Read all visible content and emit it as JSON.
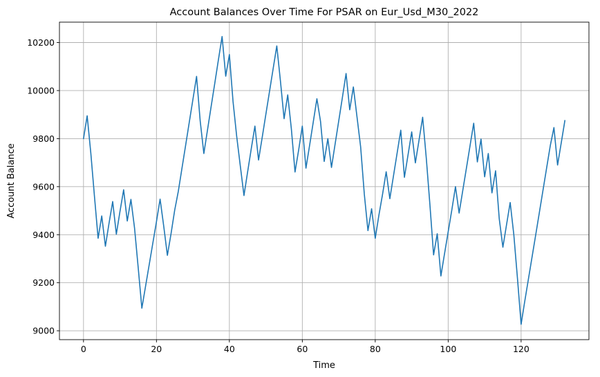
{
  "chart_data": {
    "type": "line",
    "title": "Account Balances Over Time For PSAR on Eur_Usd_M30_2022",
    "xlabel": "Time",
    "ylabel": "Account Balance",
    "xlim": [
      -6.6,
      138.6
    ],
    "ylim": [
      8963,
      10285
    ],
    "xticks": [
      0,
      20,
      40,
      60,
      80,
      100,
      120
    ],
    "yticks": [
      9000,
      9200,
      9400,
      9600,
      9800,
      10000,
      10200
    ],
    "grid": true,
    "line_color": "#1f77b4",
    "series": [
      {
        "x": [
          0,
          1,
          2,
          3,
          4,
          5,
          6,
          7,
          8,
          9,
          10,
          11,
          12,
          13,
          14,
          15,
          16,
          17,
          18,
          19,
          20,
          21,
          22,
          23,
          24,
          25,
          26,
          27,
          28,
          29,
          30,
          31,
          32,
          33,
          34,
          35,
          36,
          37,
          38,
          39,
          40,
          41,
          42,
          43,
          44,
          45,
          46,
          47,
          48,
          49,
          50,
          51,
          52,
          53,
          54,
          55,
          56,
          57,
          58,
          59,
          60,
          61,
          62,
          63,
          64,
          65,
          66,
          67,
          68,
          69,
          70,
          71,
          72,
          73,
          74,
          75,
          76,
          77,
          78,
          79,
          80,
          81,
          82,
          83,
          84,
          85,
          86,
          87,
          88,
          89,
          90,
          91,
          92,
          93,
          94,
          95,
          96,
          97,
          98,
          99,
          100,
          101,
          102,
          103,
          104,
          105,
          106,
          107,
          108,
          109,
          110,
          111,
          112,
          113,
          114,
          115,
          116,
          117,
          118,
          119,
          120,
          121,
          122,
          123,
          124,
          125,
          126,
          127,
          128,
          129,
          130,
          131,
          132
        ],
        "values": [
          9800,
          9895,
          9740,
          9560,
          9385,
          9478,
          9352,
          9448,
          9538,
          9402,
          9497,
          9587,
          9457,
          9547,
          9427,
          9262,
          9094,
          9184,
          9274,
          9364,
          9454,
          9548,
          9435,
          9314,
          9404,
          9502,
          9581,
          9677,
          9772,
          9868,
          9963,
          10059,
          9873,
          9738,
          9836,
          9934,
          10031,
          10129,
          10225,
          10060,
          10150,
          9955,
          9810,
          9686,
          9563,
          9661,
          9758,
          9852,
          9711,
          9805,
          9901,
          9996,
          10091,
          10186,
          10040,
          9883,
          9982,
          9840,
          9661,
          9753,
          9852,
          9677,
          9772,
          9869,
          9966,
          9871,
          9705,
          9800,
          9680,
          9778,
          9875,
          9972,
          10071,
          9920,
          10015,
          9890,
          9765,
          9569,
          9417,
          9508,
          9385,
          9481,
          9568,
          9662,
          9550,
          9645,
          9740,
          9835,
          9639,
          9733,
          9828,
          9699,
          9793,
          9889,
          9718,
          9523,
          9316,
          9404,
          9228,
          9321,
          9412,
          9503,
          9600,
          9490,
          9584,
          9677,
          9771,
          9864,
          9703,
          9798,
          9641,
          9738,
          9574,
          9666,
          9467,
          9348,
          9441,
          9534,
          9400,
          9218,
          9027,
          9123,
          9215,
          9307,
          9399,
          9492,
          9585,
          9678,
          9771,
          9846,
          9690,
          9782,
          9875
        ]
      }
    ]
  }
}
